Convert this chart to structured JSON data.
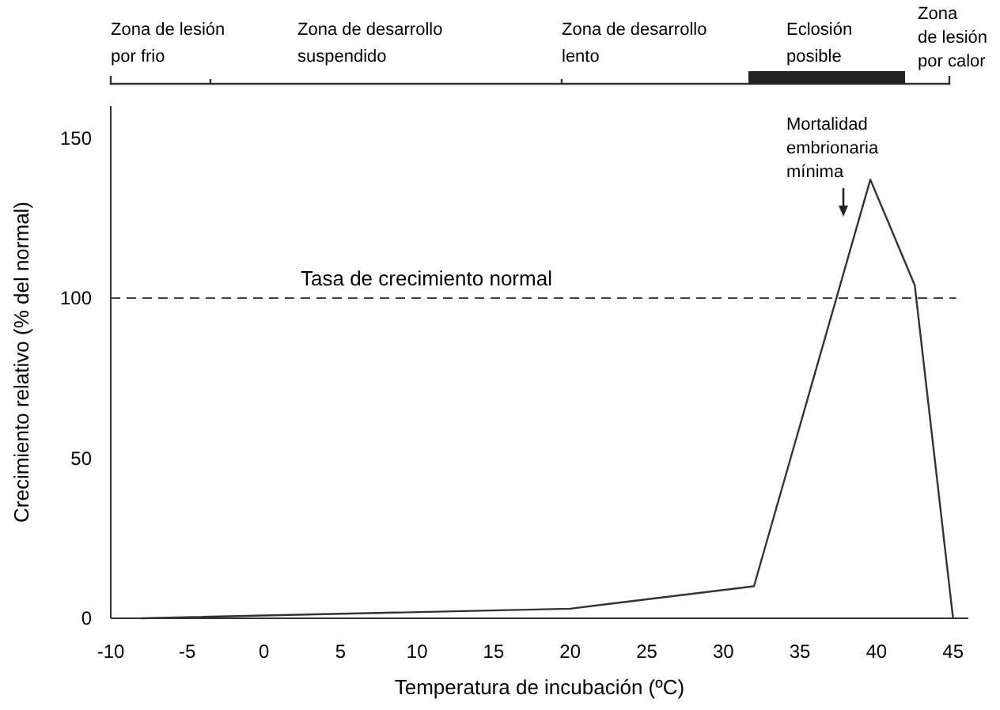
{
  "chart_data": {
    "type": "line",
    "xlabel": "Temperatura de incubación (ºC)",
    "ylabel": "Crecimiento relativo (% del normal)",
    "x": [
      -8,
      20,
      32,
      39.6,
      42.5,
      45
    ],
    "series": [
      {
        "color": "#333333",
        "values": [
          0,
          3,
          10,
          137,
          104,
          0
        ]
      }
    ],
    "xlim": [
      -10,
      46
    ],
    "xticks": [
      -10,
      -5,
      0,
      5,
      10,
      15,
      20,
      25,
      30,
      35,
      40,
      45
    ],
    "ylim": [
      0,
      160
    ],
    "yticks": [
      0,
      50,
      100,
      150
    ],
    "grid": false,
    "marker": "none",
    "line_style": "solid",
    "ref_lines": [
      {
        "axis": "y",
        "value": 100,
        "label": "Tasa de crecimiento normal",
        "line_style": "dashed",
        "color": "#444444"
      }
    ],
    "annotations": [
      "Mortalidad\nembrionaria\nmínima",
      "Zona de lesión\npor frio",
      "Zona de desarrollo\nsuspendido",
      "Zona de desarrollo\nlento",
      "Eclosión\nposible",
      "Zona\nde lesión\npor calor"
    ]
  }
}
